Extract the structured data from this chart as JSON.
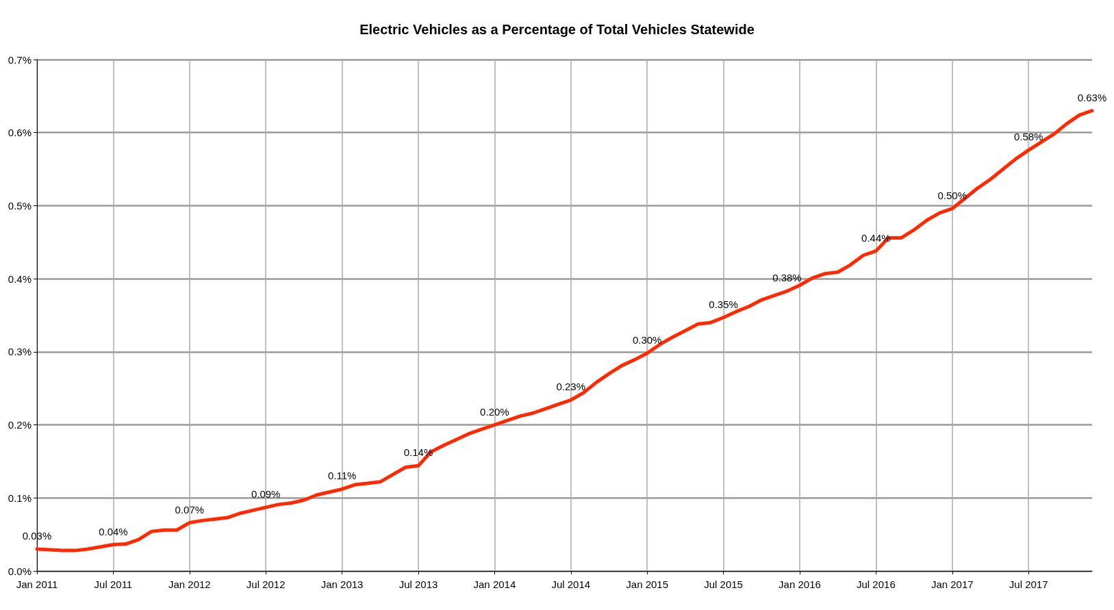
{
  "chart_data": {
    "type": "line",
    "title": "Electric Vehicles as a Percentage of Total Vehicles Statewide",
    "categories": [
      "Jan 2011",
      null,
      null,
      null,
      null,
      null,
      "Jul 2011",
      null,
      null,
      null,
      null,
      null,
      "Jan 2012",
      null,
      null,
      null,
      null,
      null,
      "Jul 2012",
      null,
      null,
      null,
      null,
      null,
      "Jan 2013",
      null,
      null,
      null,
      null,
      null,
      "Jul 2013",
      null,
      null,
      null,
      null,
      null,
      "Jan 2014",
      null,
      null,
      null,
      null,
      null,
      "Jul 2014",
      null,
      null,
      null,
      null,
      null,
      "Jan 2015",
      null,
      null,
      null,
      null,
      null,
      "Jul 2015",
      null,
      null,
      null,
      null,
      null,
      "Jan 2016",
      null,
      null,
      null,
      null,
      null,
      "Jul 2016",
      null,
      null,
      null,
      null,
      null,
      "Jan 2017",
      null,
      null,
      null,
      null,
      null,
      "Jul 2017",
      null,
      null,
      null,
      null,
      null
    ],
    "series": [
      {
        "color": "#ff2a00",
        "values": [
          0.03,
          0.029,
          0.028,
          0.028,
          0.03,
          0.033,
          0.036,
          0.037,
          0.043,
          0.054,
          0.056,
          0.056,
          0.066,
          0.069,
          0.071,
          0.073,
          0.079,
          0.083,
          0.087,
          0.091,
          0.093,
          0.097,
          0.104,
          0.108,
          0.112,
          0.118,
          0.12,
          0.122,
          0.132,
          0.142,
          0.144,
          0.163,
          0.172,
          0.18,
          0.188,
          0.194,
          0.2,
          0.206,
          0.212,
          0.216,
          0.222,
          0.228,
          0.234,
          0.244,
          0.258,
          0.27,
          0.281,
          0.289,
          0.298,
          0.31,
          0.32,
          0.329,
          0.338,
          0.34,
          0.347,
          0.355,
          0.362,
          0.371,
          0.377,
          0.383,
          0.391,
          0.401,
          0.407,
          0.409,
          0.419,
          0.432,
          0.438,
          0.456,
          0.456,
          0.467,
          0.48,
          0.49,
          0.496,
          0.51,
          0.524,
          0.536,
          0.55,
          0.564,
          0.576,
          0.587,
          0.598,
          0.612,
          0.624,
          0.63
        ],
        "value_labels": [
          "0.03%",
          null,
          null,
          null,
          null,
          null,
          "0.04%",
          null,
          null,
          null,
          null,
          null,
          "0.07%",
          null,
          null,
          null,
          null,
          null,
          "0.09%",
          null,
          null,
          null,
          null,
          null,
          "0.11%",
          null,
          null,
          null,
          null,
          null,
          "0.14%",
          null,
          null,
          null,
          null,
          null,
          "0.20%",
          null,
          null,
          null,
          null,
          null,
          "0.23%",
          null,
          null,
          null,
          null,
          null,
          "0.30%",
          null,
          null,
          null,
          null,
          null,
          "0.35%",
          null,
          null,
          null,
          null,
          "0.38%",
          null,
          null,
          null,
          null,
          null,
          null,
          "0.44%",
          null,
          null,
          null,
          null,
          null,
          "0.50%",
          null,
          null,
          null,
          null,
          null,
          "0.58%",
          null,
          null,
          null,
          null,
          "0.63%"
        ]
      }
    ],
    "ylim": [
      0,
      0.7
    ],
    "yticks": [
      {
        "value": 0,
        "label": "0.0%"
      },
      {
        "value": 0.1,
        "label": "0.1%"
      },
      {
        "value": 0.2,
        "label": "0.2%"
      },
      {
        "value": 0.3,
        "label": "0.3%"
      },
      {
        "value": 0.4,
        "label": "0.4%"
      },
      {
        "value": 0.5,
        "label": "0.5%"
      },
      {
        "value": 0.6,
        "label": "0.6%"
      },
      {
        "value": 0.7,
        "label": "0.7%"
      }
    ],
    "grid": true,
    "marker": "none",
    "line_style": "solid"
  }
}
